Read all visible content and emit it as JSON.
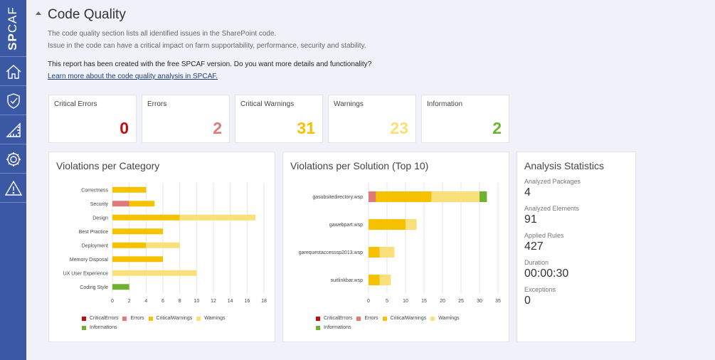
{
  "sidebar": {
    "logo_sp": "SP",
    "logo_caf": "CAF",
    "items": [
      {
        "icon": "home-icon"
      },
      {
        "icon": "shield-icon"
      },
      {
        "icon": "ruler-icon"
      },
      {
        "icon": "gear-icon"
      },
      {
        "icon": "warning-icon"
      }
    ]
  },
  "header": {
    "title": "Code Quality",
    "desc_line1": "The code quality section lists all identified issues in the SharePoint code.",
    "desc_line2": "Issue in the code can have a critical impact on farm supportability, performance, security and stability.",
    "report_note": "This report has been created with the free SPCAF version. Do you want more details and functionality?",
    "learn_link": "Learn more about the code quality analysis in SPCAF."
  },
  "cards": [
    {
      "label": "Critical Errors",
      "value": "0",
      "color": "#c00d0d"
    },
    {
      "label": "Errors",
      "value": "2",
      "color": "#e07a7a"
    },
    {
      "label": "Critical Warnings",
      "value": "31",
      "color": "#f5c100"
    },
    {
      "label": "Warnings",
      "value": "23",
      "color": "#fae07a"
    },
    {
      "label": "Information",
      "value": "2",
      "color": "#71b132"
    }
  ],
  "colors": {
    "CriticalErrors": "#c00d0d",
    "Errors": "#e07a7a",
    "CriticalWarnings": "#f5c100",
    "Warnings": "#fae07a",
    "Informations": "#71b132"
  },
  "category_panel": {
    "title": "Violations per Category",
    "legend": [
      "CriticalErrors",
      "Errors",
      "CriticalWarnings",
      "Warnings",
      "Informations"
    ]
  },
  "solution_panel": {
    "title": "Violations per Solution (Top 10)",
    "legend": [
      "CriticalErrors",
      "Errors",
      "CriticalWarnings",
      "Warnings",
      "Informations"
    ]
  },
  "stats_panel": {
    "title": "Analysis Statistics",
    "items": [
      {
        "label": "Analyzed Packages",
        "value": "4"
      },
      {
        "label": "Analyzed Elements",
        "value": "91"
      },
      {
        "label": "Applied Rules",
        "value": "427"
      },
      {
        "label": "Duration",
        "value": "00:00:30"
      },
      {
        "label": "Exceptions",
        "value": "0"
      }
    ]
  },
  "chart_data": [
    {
      "type": "bar",
      "orientation": "horizontal",
      "stacked": true,
      "title": "Violations per Category",
      "categories": [
        "Correctness",
        "Security",
        "Design",
        "Best Practice",
        "Deployment",
        "Memory Disposal",
        "UX User Experience",
        "Coding Style"
      ],
      "xlim": [
        0,
        18
      ],
      "xticks": [
        0,
        2,
        4,
        6,
        8,
        10,
        12,
        14,
        16,
        18
      ],
      "grid": true,
      "legend_position": "bottom",
      "series": [
        {
          "name": "CriticalErrors",
          "values": [
            0,
            0,
            0,
            0,
            0,
            0,
            0,
            0
          ]
        },
        {
          "name": "Errors",
          "values": [
            0,
            2,
            0,
            0,
            0,
            0,
            0,
            0
          ]
        },
        {
          "name": "CriticalWarnings",
          "values": [
            4,
            3,
            8,
            6,
            4,
            6,
            0,
            0
          ]
        },
        {
          "name": "Warnings",
          "values": [
            0,
            0,
            9,
            0,
            4,
            0,
            10,
            0
          ]
        },
        {
          "name": "Informations",
          "values": [
            0,
            0,
            0,
            0,
            0,
            0,
            0,
            2
          ]
        }
      ]
    },
    {
      "type": "bar",
      "orientation": "horizontal",
      "stacked": true,
      "title": "Violations per Solution (Top 10)",
      "categories": [
        "gasubsitedirectory.wsp",
        "gawebpart.wsp",
        "garequestaccesssp2013.wsp",
        "suitlinkbar.wsp"
      ],
      "xlim": [
        0,
        35
      ],
      "xticks": [
        0,
        5,
        10,
        15,
        20,
        25,
        30,
        35
      ],
      "grid": true,
      "legend_position": "bottom",
      "series": [
        {
          "name": "CriticalErrors",
          "values": [
            0,
            0,
            0,
            0
          ]
        },
        {
          "name": "Errors",
          "values": [
            2,
            0,
            0,
            0
          ]
        },
        {
          "name": "CriticalWarnings",
          "values": [
            15,
            10,
            3,
            3
          ]
        },
        {
          "name": "Warnings",
          "values": [
            13,
            3,
            4,
            3
          ]
        },
        {
          "name": "Informations",
          "values": [
            2,
            0,
            0,
            0
          ]
        }
      ]
    }
  ]
}
